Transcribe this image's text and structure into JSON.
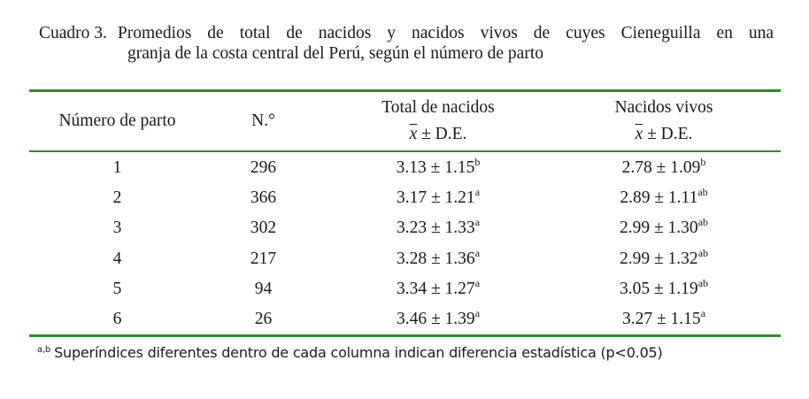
{
  "caption": {
    "label": "Cuadro 3.",
    "line1": "Promedios de total de nacidos y nacidos vivos de cuyes Cieneguilla en una",
    "line2": "granja de la costa central del Perú, según el número de parto"
  },
  "table": {
    "headers": {
      "parto": "Número de parto",
      "n": "N.°",
      "total": "Total de nacidos",
      "vivos": "Nacidos vivos",
      "stat_symbol": "x",
      "stat_rest": " ± D.E."
    },
    "rows": [
      {
        "parto": "1",
        "n": "296",
        "total": "3.13 ± 1.15",
        "total_sup": "b",
        "vivos": "2.78 ± 1.09",
        "vivos_sup": "b"
      },
      {
        "parto": "2",
        "n": "366",
        "total": "3.17 ± 1.21",
        "total_sup": "a",
        "vivos": "2.89 ± 1.11",
        "vivos_sup": "ab"
      },
      {
        "parto": "3",
        "n": "302",
        "total": "3.23 ± 1.33",
        "total_sup": "a",
        "vivos": "2.99 ± 1.30",
        "vivos_sup": "ab"
      },
      {
        "parto": "4",
        "n": "217",
        "total": "3.28 ± 1.36",
        "total_sup": "a",
        "vivos": "2.99 ± 1.32",
        "vivos_sup": "ab"
      },
      {
        "parto": "5",
        "n": "94",
        "total": "3.34 ± 1.27",
        "total_sup": "a",
        "vivos": "3.05 ± 1.19",
        "vivos_sup": "ab"
      },
      {
        "parto": "6",
        "n": "26",
        "total": "3.46 ± 1.39",
        "total_sup": "a",
        "vivos": "3.27 ± 1.15",
        "vivos_sup": "a"
      }
    ]
  },
  "footnote": {
    "sup": "a,b",
    "text": "Superíndices diferentes dentro de cada columna indican diferencia estadística (p<0.05)"
  },
  "colors": {
    "rule": "#2e8b2e"
  }
}
